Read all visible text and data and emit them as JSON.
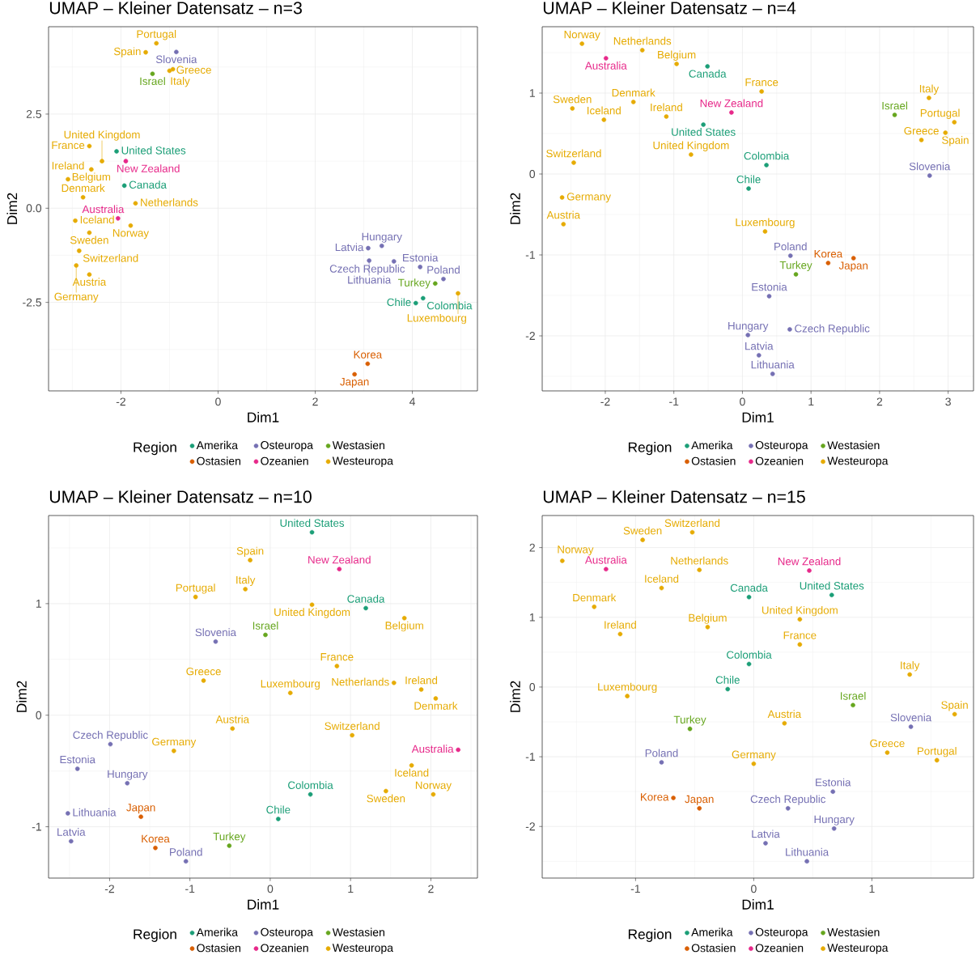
{
  "chart_data": [
    {
      "type": "scatter",
      "title": "UMAP – Kleiner Datensatz – n=3",
      "xlabel": "Dim1",
      "ylabel": "Dim2",
      "legend_title": "Region",
      "legend": "bottom",
      "grid": true,
      "marker": "circle",
      "xlim": [
        -3.49,
        5.34
      ],
      "ylim": [
        -4.85,
        4.82
      ],
      "xticks": [
        -2,
        0,
        2,
        4
      ],
      "yticks": [
        -2.5,
        {
          "value": 0,
          "label": "0.0"
        },
        2.5
      ],
      "series": [
        {
          "name": "Amerika",
          "color": "#1b9e77",
          "x": [
            -1.93,
            4.07,
            4.22,
            -2.09
          ],
          "values": [
            0.6,
            -2.52,
            -2.39,
            1.51
          ],
          "value_labels": [
            "Canada",
            "Chile",
            "Colombia",
            "United States"
          ]
        },
        {
          "name": "Ostasien",
          "color": "#d95f02",
          "x": [
            2.81,
            3.08
          ],
          "values": [
            -4.41,
            -4.13
          ],
          "value_labels": [
            "Japan",
            "Korea"
          ]
        },
        {
          "name": "Osteuropa",
          "color": "#7570b3",
          "x": [
            3.62,
            4.16,
            3.37,
            3.09,
            3.11,
            4.64,
            -0.86
          ],
          "values": [
            -1.41,
            -1.56,
            -1.0,
            -1.06,
            -1.39,
            -1.88,
            4.15
          ],
          "value_labels": [
            "Czech Republic",
            "Estonia",
            "Hungary",
            "Latvia",
            "Lithuania",
            "Poland",
            "Slovenia"
          ]
        },
        {
          "name": "Ozeanien",
          "color": "#e7298a",
          "x": [
            -2.06,
            -1.9
          ],
          "values": [
            -0.27,
            1.25
          ],
          "value_labels": [
            "Australia",
            "New Zealand"
          ]
        },
        {
          "name": "Westasien",
          "color": "#66a61e",
          "x": [
            -1.35,
            4.47
          ],
          "values": [
            3.57,
            -2.0
          ],
          "value_labels": [
            "Israel",
            "Turkey"
          ]
        },
        {
          "name": "Westeuropa",
          "color": "#e6ab02",
          "x": [
            -2.65,
            -2.61,
            -2.78,
            -2.65,
            -2.92,
            -1.0,
            -2.94,
            -3.09,
            -0.93,
            4.94,
            -1.7,
            -1.8,
            -1.27,
            -1.49,
            -2.65,
            -2.86,
            -2.39
          ],
          "values": [
            -1.76,
            1.03,
            0.29,
            1.65,
            -1.52,
            3.65,
            -0.33,
            0.77,
            3.69,
            -2.26,
            0.13,
            -0.46,
            4.38,
            4.14,
            -0.65,
            -1.13,
            1.25
          ],
          "value_labels": [
            "Austria",
            "Belgium",
            "Denmark",
            "France",
            "Germany",
            "Greece",
            "Iceland",
            "Ireland",
            "Italy",
            "Luxembourg",
            "Netherlands",
            "Norway",
            "Portugal",
            "Spain",
            "Sweden",
            "Switzerland",
            "United Kingdom"
          ]
        }
      ]
    },
    {
      "type": "scatter",
      "title": "UMAP – Kleiner Datensatz – n=4",
      "xlabel": "Dim1",
      "ylabel": "Dim2",
      "legend_title": "Region",
      "legend": "bottom",
      "grid": true,
      "marker": "circle",
      "xlim": [
        -2.92,
        3.37
      ],
      "ylim": [
        -2.68,
        1.82
      ],
      "xticks": [
        -2,
        -1,
        0,
        1,
        2,
        3
      ],
      "yticks": [
        -2,
        -1,
        0,
        1
      ],
      "series": [
        {
          "name": "Amerika",
          "color": "#1b9e77",
          "x": [
            -0.51,
            0.09,
            0.35,
            -0.57
          ],
          "values": [
            1.33,
            -0.18,
            0.11,
            0.61
          ],
          "value_labels": [
            "Canada",
            "Chile",
            "Colombia",
            "United States"
          ]
        },
        {
          "name": "Ostasien",
          "color": "#d95f02",
          "x": [
            1.62,
            1.25
          ],
          "values": [
            -1.04,
            -1.1
          ],
          "value_labels": [
            "Japan",
            "Korea"
          ]
        },
        {
          "name": "Osteuropa",
          "color": "#7570b3",
          "x": [
            0.69,
            0.39,
            0.08,
            0.24,
            0.44,
            0.7,
            2.73
          ],
          "values": [
            -1.92,
            -1.51,
            -1.99,
            -2.24,
            -2.47,
            -1.01,
            -0.02
          ],
          "value_labels": [
            "Czech Republic",
            "Estonia",
            "Hungary",
            "Latvia",
            "Lithuania",
            "Poland",
            "Slovenia"
          ]
        },
        {
          "name": "Ozeanien",
          "color": "#e7298a",
          "x": [
            -1.99,
            -0.16
          ],
          "values": [
            1.43,
            0.76
          ],
          "value_labels": [
            "Australia",
            "New Zealand"
          ]
        },
        {
          "name": "Westasien",
          "color": "#66a61e",
          "x": [
            2.22,
            0.78
          ],
          "values": [
            0.73,
            -1.24
          ],
          "value_labels": [
            "Israel",
            "Turkey"
          ]
        },
        {
          "name": "Westeuropa",
          "color": "#e6ab02",
          "x": [
            -2.61,
            -0.96,
            -1.59,
            0.28,
            -2.63,
            2.61,
            -2.02,
            -1.11,
            2.72,
            0.33,
            -1.46,
            -2.34,
            3.09,
            2.96,
            -2.48,
            -2.46,
            -0.75
          ],
          "values": [
            -0.62,
            1.36,
            0.89,
            1.02,
            -0.29,
            0.42,
            0.67,
            0.71,
            0.94,
            -0.71,
            1.53,
            1.61,
            0.64,
            0.51,
            0.81,
            0.14,
            0.24
          ],
          "value_labels": [
            "Austria",
            "Belgium",
            "Denmark",
            "France",
            "Germany",
            "Greece",
            "Iceland",
            "Ireland",
            "Italy",
            "Luxembourg",
            "Netherlands",
            "Norway",
            "Portugal",
            "Spain",
            "Sweden",
            "Switzerland",
            "United Kingdom"
          ]
        }
      ]
    },
    {
      "type": "scatter",
      "title": "UMAP – Kleiner Datensatz – n=10",
      "xlabel": "Dim1",
      "ylabel": "Dim2",
      "legend_title": "Region",
      "legend": "bottom",
      "grid": true,
      "marker": "circle",
      "xlim": [
        -2.76,
        2.58
      ],
      "ylim": [
        -1.46,
        1.79
      ],
      "xticks": [
        -2,
        -1,
        0,
        1,
        2
      ],
      "yticks": [
        -1,
        0,
        1
      ],
      "series": [
        {
          "name": "Amerika",
          "color": "#1b9e77",
          "x": [
            1.19,
            0.1,
            0.5,
            0.52
          ],
          "values": [
            0.96,
            -0.93,
            -0.71,
            1.64
          ],
          "value_labels": [
            "Canada",
            "Chile",
            "Colombia",
            "United States"
          ]
        },
        {
          "name": "Ostasien",
          "color": "#d95f02",
          "x": [
            -1.61,
            -1.43
          ],
          "values": [
            -0.91,
            -1.19
          ],
          "value_labels": [
            "Japan",
            "Korea"
          ]
        },
        {
          "name": "Osteuropa",
          "color": "#7570b3",
          "x": [
            -1.99,
            -2.4,
            -1.78,
            -2.48,
            -2.52,
            -1.05,
            -0.68
          ],
          "values": [
            -0.26,
            -0.48,
            -0.61,
            -1.13,
            -0.88,
            -1.31,
            0.66
          ],
          "value_labels": [
            "Czech Republic",
            "Estonia",
            "Hungary",
            "Latvia",
            "Lithuania",
            "Poland",
            "Slovenia"
          ]
        },
        {
          "name": "Ozeanien",
          "color": "#e7298a",
          "x": [
            2.34,
            0.86
          ],
          "values": [
            -0.31,
            1.31
          ],
          "value_labels": [
            "Australia",
            "New Zealand"
          ]
        },
        {
          "name": "Westasien",
          "color": "#66a61e",
          "x": [
            -0.06,
            -0.51
          ],
          "values": [
            0.72,
            -1.17
          ],
          "value_labels": [
            "Israel",
            "Turkey"
          ]
        },
        {
          "name": "Westeuropa",
          "color": "#e6ab02",
          "x": [
            -0.47,
            1.67,
            2.06,
            0.83,
            -1.2,
            -0.83,
            1.76,
            1.88,
            -0.31,
            0.25,
            1.54,
            2.03,
            -0.93,
            -0.25,
            1.44,
            1.02,
            0.52
          ],
          "values": [
            -0.12,
            0.87,
            0.15,
            0.44,
            -0.32,
            0.31,
            -0.45,
            0.23,
            1.13,
            0.2,
            0.29,
            -0.71,
            1.06,
            1.39,
            -0.68,
            -0.18,
            0.99
          ],
          "value_labels": [
            "Austria",
            "Belgium",
            "Denmark",
            "France",
            "Germany",
            "Greece",
            "Iceland",
            "Ireland",
            "Italy",
            "Luxembourg",
            "Netherlands",
            "Norway",
            "Portugal",
            "Spain",
            "Sweden",
            "Switzerland",
            "United Kingdom"
          ]
        }
      ]
    },
    {
      "type": "scatter",
      "title": "UMAP – Kleiner Datensatz – n=15",
      "xlabel": "Dim1",
      "ylabel": "Dim2",
      "legend_title": "Region",
      "legend": "bottom",
      "grid": true,
      "marker": "circle",
      "xlim": [
        -1.79,
        1.86
      ],
      "ylim": [
        -2.74,
        2.46
      ],
      "xticks": [
        -1,
        0,
        1
      ],
      "yticks": [
        -2,
        -1,
        0,
        1,
        2
      ],
      "series": [
        {
          "name": "Amerika",
          "color": "#1b9e77",
          "x": [
            -0.04,
            -0.22,
            -0.04,
            0.66
          ],
          "values": [
            1.29,
            -0.03,
            0.33,
            1.32
          ],
          "value_labels": [
            "Canada",
            "Chile",
            "Colombia",
            "United States"
          ]
        },
        {
          "name": "Ostasien",
          "color": "#d95f02",
          "x": [
            -0.46,
            -0.68
          ],
          "values": [
            -1.74,
            -1.59
          ],
          "value_labels": [
            "Japan",
            "Korea"
          ]
        },
        {
          "name": "Osteuropa",
          "color": "#7570b3",
          "x": [
            0.29,
            0.67,
            0.68,
            0.1,
            0.45,
            -0.78,
            1.33
          ],
          "values": [
            -1.74,
            -1.5,
            -2.03,
            -2.24,
            -2.5,
            -1.08,
            -0.57
          ],
          "value_labels": [
            "Czech Republic",
            "Estonia",
            "Hungary",
            "Latvia",
            "Lithuania",
            "Poland",
            "Slovenia"
          ]
        },
        {
          "name": "Ozeanien",
          "color": "#e7298a",
          "x": [
            -1.25,
            0.47
          ],
          "values": [
            1.69,
            1.67
          ],
          "value_labels": [
            "Australia",
            "New Zealand"
          ]
        },
        {
          "name": "Westasien",
          "color": "#66a61e",
          "x": [
            0.84,
            -0.54
          ],
          "values": [
            -0.26,
            -0.6
          ],
          "value_labels": [
            "Israel",
            "Turkey"
          ]
        },
        {
          "name": "Westeuropa",
          "color": "#e6ab02",
          "x": [
            0.26,
            -0.39,
            -1.35,
            0.39,
            0.0,
            1.13,
            -0.78,
            -1.13,
            1.32,
            -1.07,
            -0.46,
            -1.62,
            1.55,
            1.7,
            -0.94,
            -0.52,
            0.39
          ],
          "values": [
            -0.52,
            0.86,
            1.15,
            0.61,
            -1.1,
            -0.94,
            1.42,
            0.76,
            0.18,
            -0.13,
            1.68,
            1.81,
            -1.05,
            -0.39,
            2.11,
            2.22,
            0.97
          ],
          "value_labels": [
            "Austria",
            "Belgium",
            "Denmark",
            "France",
            "Germany",
            "Greece",
            "Iceland",
            "Ireland",
            "Italy",
            "Luxembourg",
            "Netherlands",
            "Norway",
            "Portugal",
            "Spain",
            "Sweden",
            "Switzerland",
            "United Kingdom"
          ]
        }
      ]
    }
  ]
}
